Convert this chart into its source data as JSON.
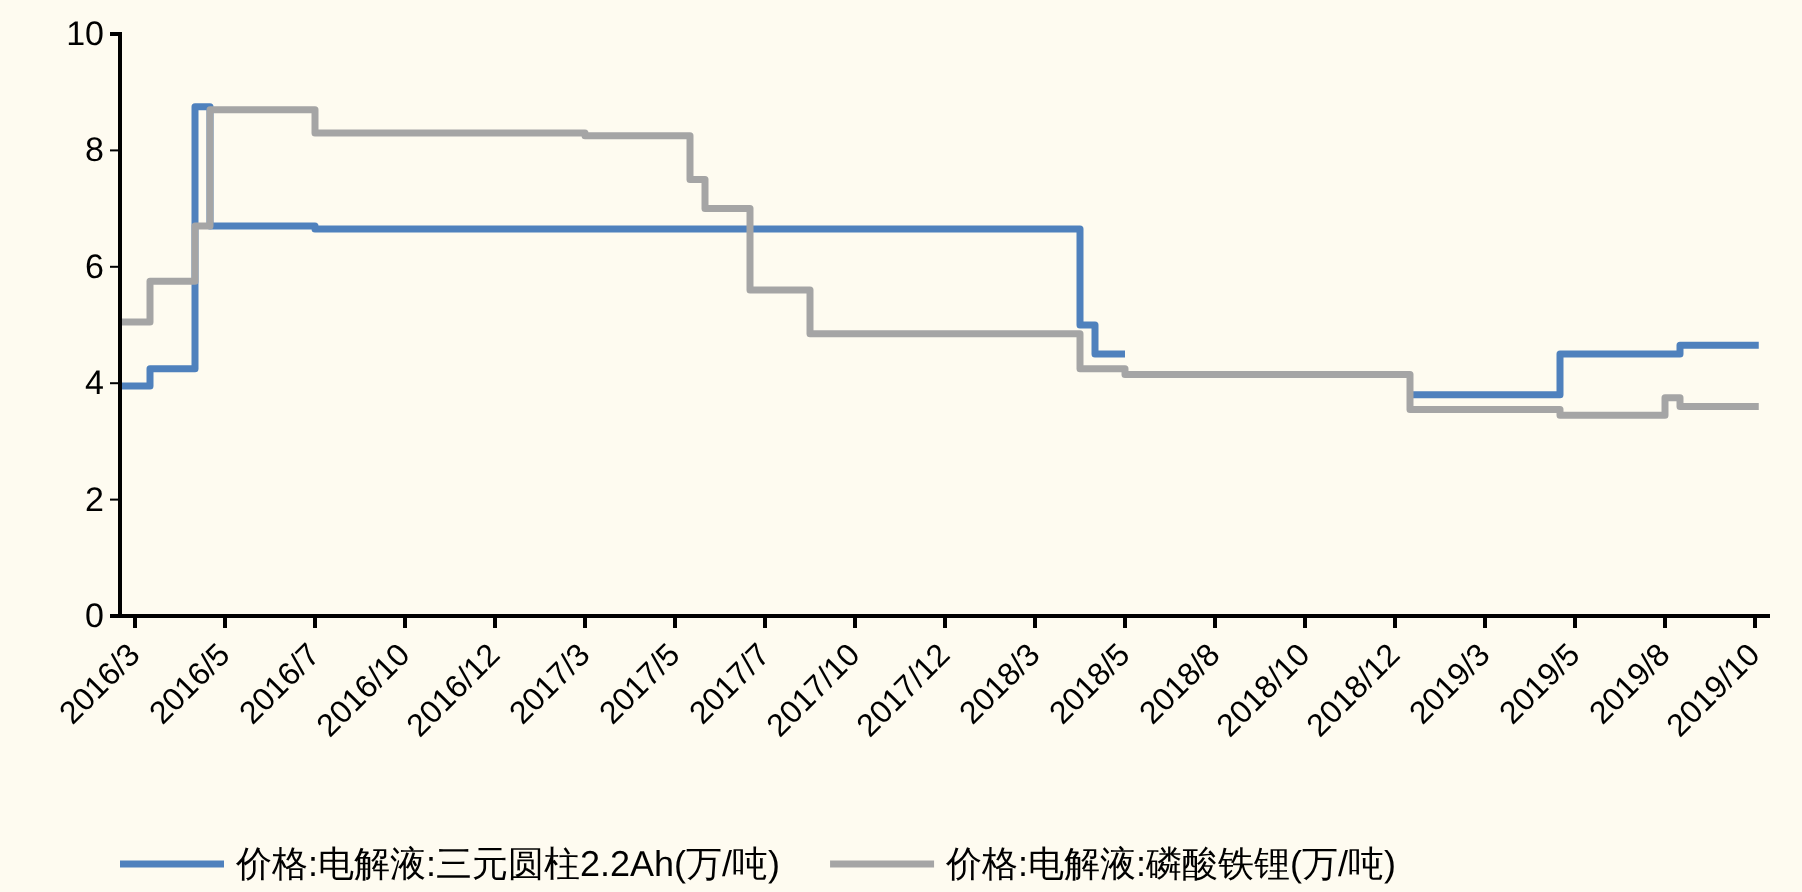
{
  "chart_data": {
    "type": "step",
    "categories": [
      null,
      "2016/3",
      null,
      null,
      null,
      null,
      null,
      "2016/5",
      null,
      null,
      null,
      null,
      null,
      "2016/7",
      null,
      null,
      null,
      null,
      null,
      "2016/10",
      null,
      null,
      null,
      null,
      null,
      "2016/12",
      null,
      null,
      null,
      null,
      null,
      "2017/3",
      null,
      null,
      null,
      null,
      null,
      "2017/5",
      null,
      null,
      null,
      null,
      null,
      "2017/7",
      null,
      null,
      null,
      null,
      null,
      "2017/10",
      null,
      null,
      null,
      null,
      null,
      "2017/12",
      null,
      null,
      null,
      null,
      null,
      "2018/3",
      null,
      null,
      null,
      null,
      null,
      "2018/5",
      null,
      null,
      null,
      null,
      null,
      "2018/8",
      null,
      null,
      null,
      null,
      null,
      "2018/10",
      null,
      null,
      null,
      null,
      null,
      "2018/12",
      null,
      null,
      null,
      null,
      null,
      "2019/3",
      null,
      null,
      null,
      null,
      null,
      "2019/5",
      null,
      null,
      null,
      null,
      null,
      "2019/8",
      null,
      null,
      null,
      null,
      null,
      "2019/10"
    ],
    "series": [
      {
        "name": "价格:电解液:三元圆柱2.2Ah(万/吨)",
        "color": "#4f81bd",
        "values": [
          3.95,
          3.95,
          4.25,
          4.25,
          4.25,
          8.75,
          6.7,
          6.7,
          6.7,
          6.7,
          6.7,
          6.7,
          6.7,
          6.65,
          6.65,
          6.65,
          6.65,
          6.65,
          6.65,
          6.65,
          6.65,
          6.65,
          6.65,
          6.65,
          6.65,
          6.65,
          6.65,
          6.65,
          6.65,
          6.65,
          6.65,
          6.65,
          6.65,
          6.65,
          6.65,
          6.65,
          6.65,
          6.65,
          6.65,
          6.65,
          6.65,
          6.65,
          6.65,
          6.65,
          6.65,
          6.65,
          6.65,
          6.65,
          6.65,
          6.65,
          6.65,
          6.65,
          6.65,
          6.65,
          6.65,
          6.65,
          6.65,
          6.65,
          6.65,
          6.65,
          6.65,
          6.65,
          6.65,
          6.65,
          5,
          4.5,
          4.5,
          null,
          null,
          null,
          null,
          null,
          null,
          null,
          null,
          null,
          null,
          null,
          null,
          null,
          null,
          null,
          null,
          null,
          null,
          null,
          3.8,
          3.8,
          3.8,
          3.8,
          3.8,
          3.8,
          3.8,
          3.8,
          3.8,
          3.8,
          4.5,
          4.5,
          4.5,
          4.5,
          4.5,
          4.5,
          4.5,
          4.5,
          4.65,
          4.65,
          4.65,
          4.65,
          4.65,
          4.65
        ]
      },
      {
        "name": "价格:电解液:磷酸铁锂(万/吨)",
        "color": "#a5a5a5",
        "values": [
          5.05,
          5.05,
          5.75,
          5.75,
          5.75,
          6.7,
          8.7,
          8.7,
          8.7,
          8.7,
          8.7,
          8.7,
          8.7,
          8.3,
          8.3,
          8.3,
          8.3,
          8.3,
          8.3,
          8.3,
          8.3,
          8.3,
          8.3,
          8.3,
          8.3,
          8.3,
          8.3,
          8.3,
          8.3,
          8.3,
          8.3,
          8.25,
          8.25,
          8.25,
          8.25,
          8.25,
          8.25,
          8.25,
          7.5,
          7,
          7,
          7,
          5.6,
          5.6,
          5.6,
          5.6,
          4.85,
          4.85,
          4.85,
          4.85,
          4.85,
          4.85,
          4.85,
          4.85,
          4.85,
          4.85,
          4.85,
          4.85,
          4.85,
          4.85,
          4.85,
          4.85,
          4.85,
          4.85,
          4.25,
          4.25,
          4.25,
          4.15,
          4.15,
          4.15,
          4.15,
          4.15,
          4.15,
          4.15,
          4.15,
          4.15,
          4.15,
          4.15,
          4.15,
          4.15,
          4.15,
          4.15,
          4.15,
          4.15,
          4.15,
          4.15,
          3.55,
          3.55,
          3.55,
          3.55,
          3.55,
          3.55,
          3.55,
          3.55,
          3.55,
          3.55,
          3.45,
          3.45,
          3.45,
          3.45,
          3.45,
          3.45,
          3.45,
          3.75,
          3.6,
          3.6,
          3.6,
          3.6,
          3.6,
          3.6
        ]
      }
    ],
    "ylim": [
      0,
      10
    ],
    "yticks": [
      0,
      2,
      4,
      6,
      8,
      10
    ],
    "grid": false,
    "legend": "bottom"
  }
}
